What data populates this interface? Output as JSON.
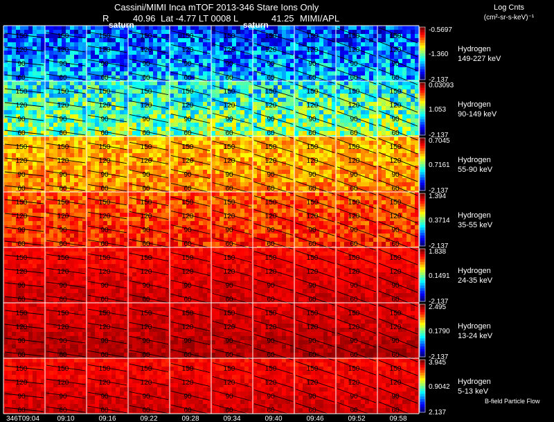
{
  "header": {
    "line1": "Cassini/MIMI Inca mTOF  2013-346    Stare    Ions Only",
    "r_label": "R",
    "r_value": "40.96",
    "line2_mid": "Lat  -4.77  LT  0008  L",
    "l_value": "41.25",
    "org": "MIMI/APL"
  },
  "colorbar_title": {
    "line1": "Log Cnts",
    "line2": "(cm²-sr-s-keV)⁻¹"
  },
  "labels": {
    "saturn_left": "saturn",
    "saturn_right": "saturn",
    "bfield": "B-field  Particle Flow"
  },
  "colors": {
    "background": "#000000",
    "grid": "#ffffff",
    "contour": "#000000"
  },
  "chart_data": {
    "type": "heatmap",
    "title": "Cassini/MIMI Inca mTOF 2013-346 Stare Ions Only",
    "x_tick_labels": [
      "346T09:04",
      "09:10",
      "09:16",
      "09:22",
      "09:28",
      "09:34",
      "09:40",
      "09:46",
      "09:52",
      "09:58"
    ],
    "contour_labels": [
      "150",
      "120",
      "90",
      "60"
    ],
    "panels": [
      {
        "species": "Hydrogen",
        "energy": "149-227 keV",
        "cb_max": "-0.5697",
        "cb_mid": "-1.360",
        "cb_min": "-2.137",
        "intensity": 0.25
      },
      {
        "species": "Hydrogen",
        "energy": "90-149 keV",
        "cb_max": "0.03093",
        "cb_mid": "1.053",
        "cb_min": "-2.137",
        "intensity": 0.45
      },
      {
        "species": "Hydrogen",
        "energy": "55-90 keV",
        "cb_max": "0.7045",
        "cb_mid": "0.7161",
        "cb_min": "-2.137",
        "intensity": 0.72
      },
      {
        "species": "Hydrogen",
        "energy": "35-55 keV",
        "cb_max": "1.394",
        "cb_mid": "0.3714",
        "cb_min": "-2.137",
        "intensity": 0.82
      },
      {
        "species": "Hydrogen",
        "energy": "24-35 keV",
        "cb_max": "1.838",
        "cb_mid": "0.1491",
        "cb_min": "-2.137",
        "intensity": 0.9
      },
      {
        "species": "Hydrogen",
        "energy": "13-24 keV",
        "cb_max": "2.495",
        "cb_mid": "0.1790",
        "cb_min": "-2.137",
        "intensity": 0.93
      },
      {
        "species": "Hydrogen",
        "energy": "5-13 keV",
        "cb_max": "3.945",
        "cb_mid": "0.9042",
        "cb_min": "2.137",
        "intensity": 0.9
      }
    ]
  }
}
